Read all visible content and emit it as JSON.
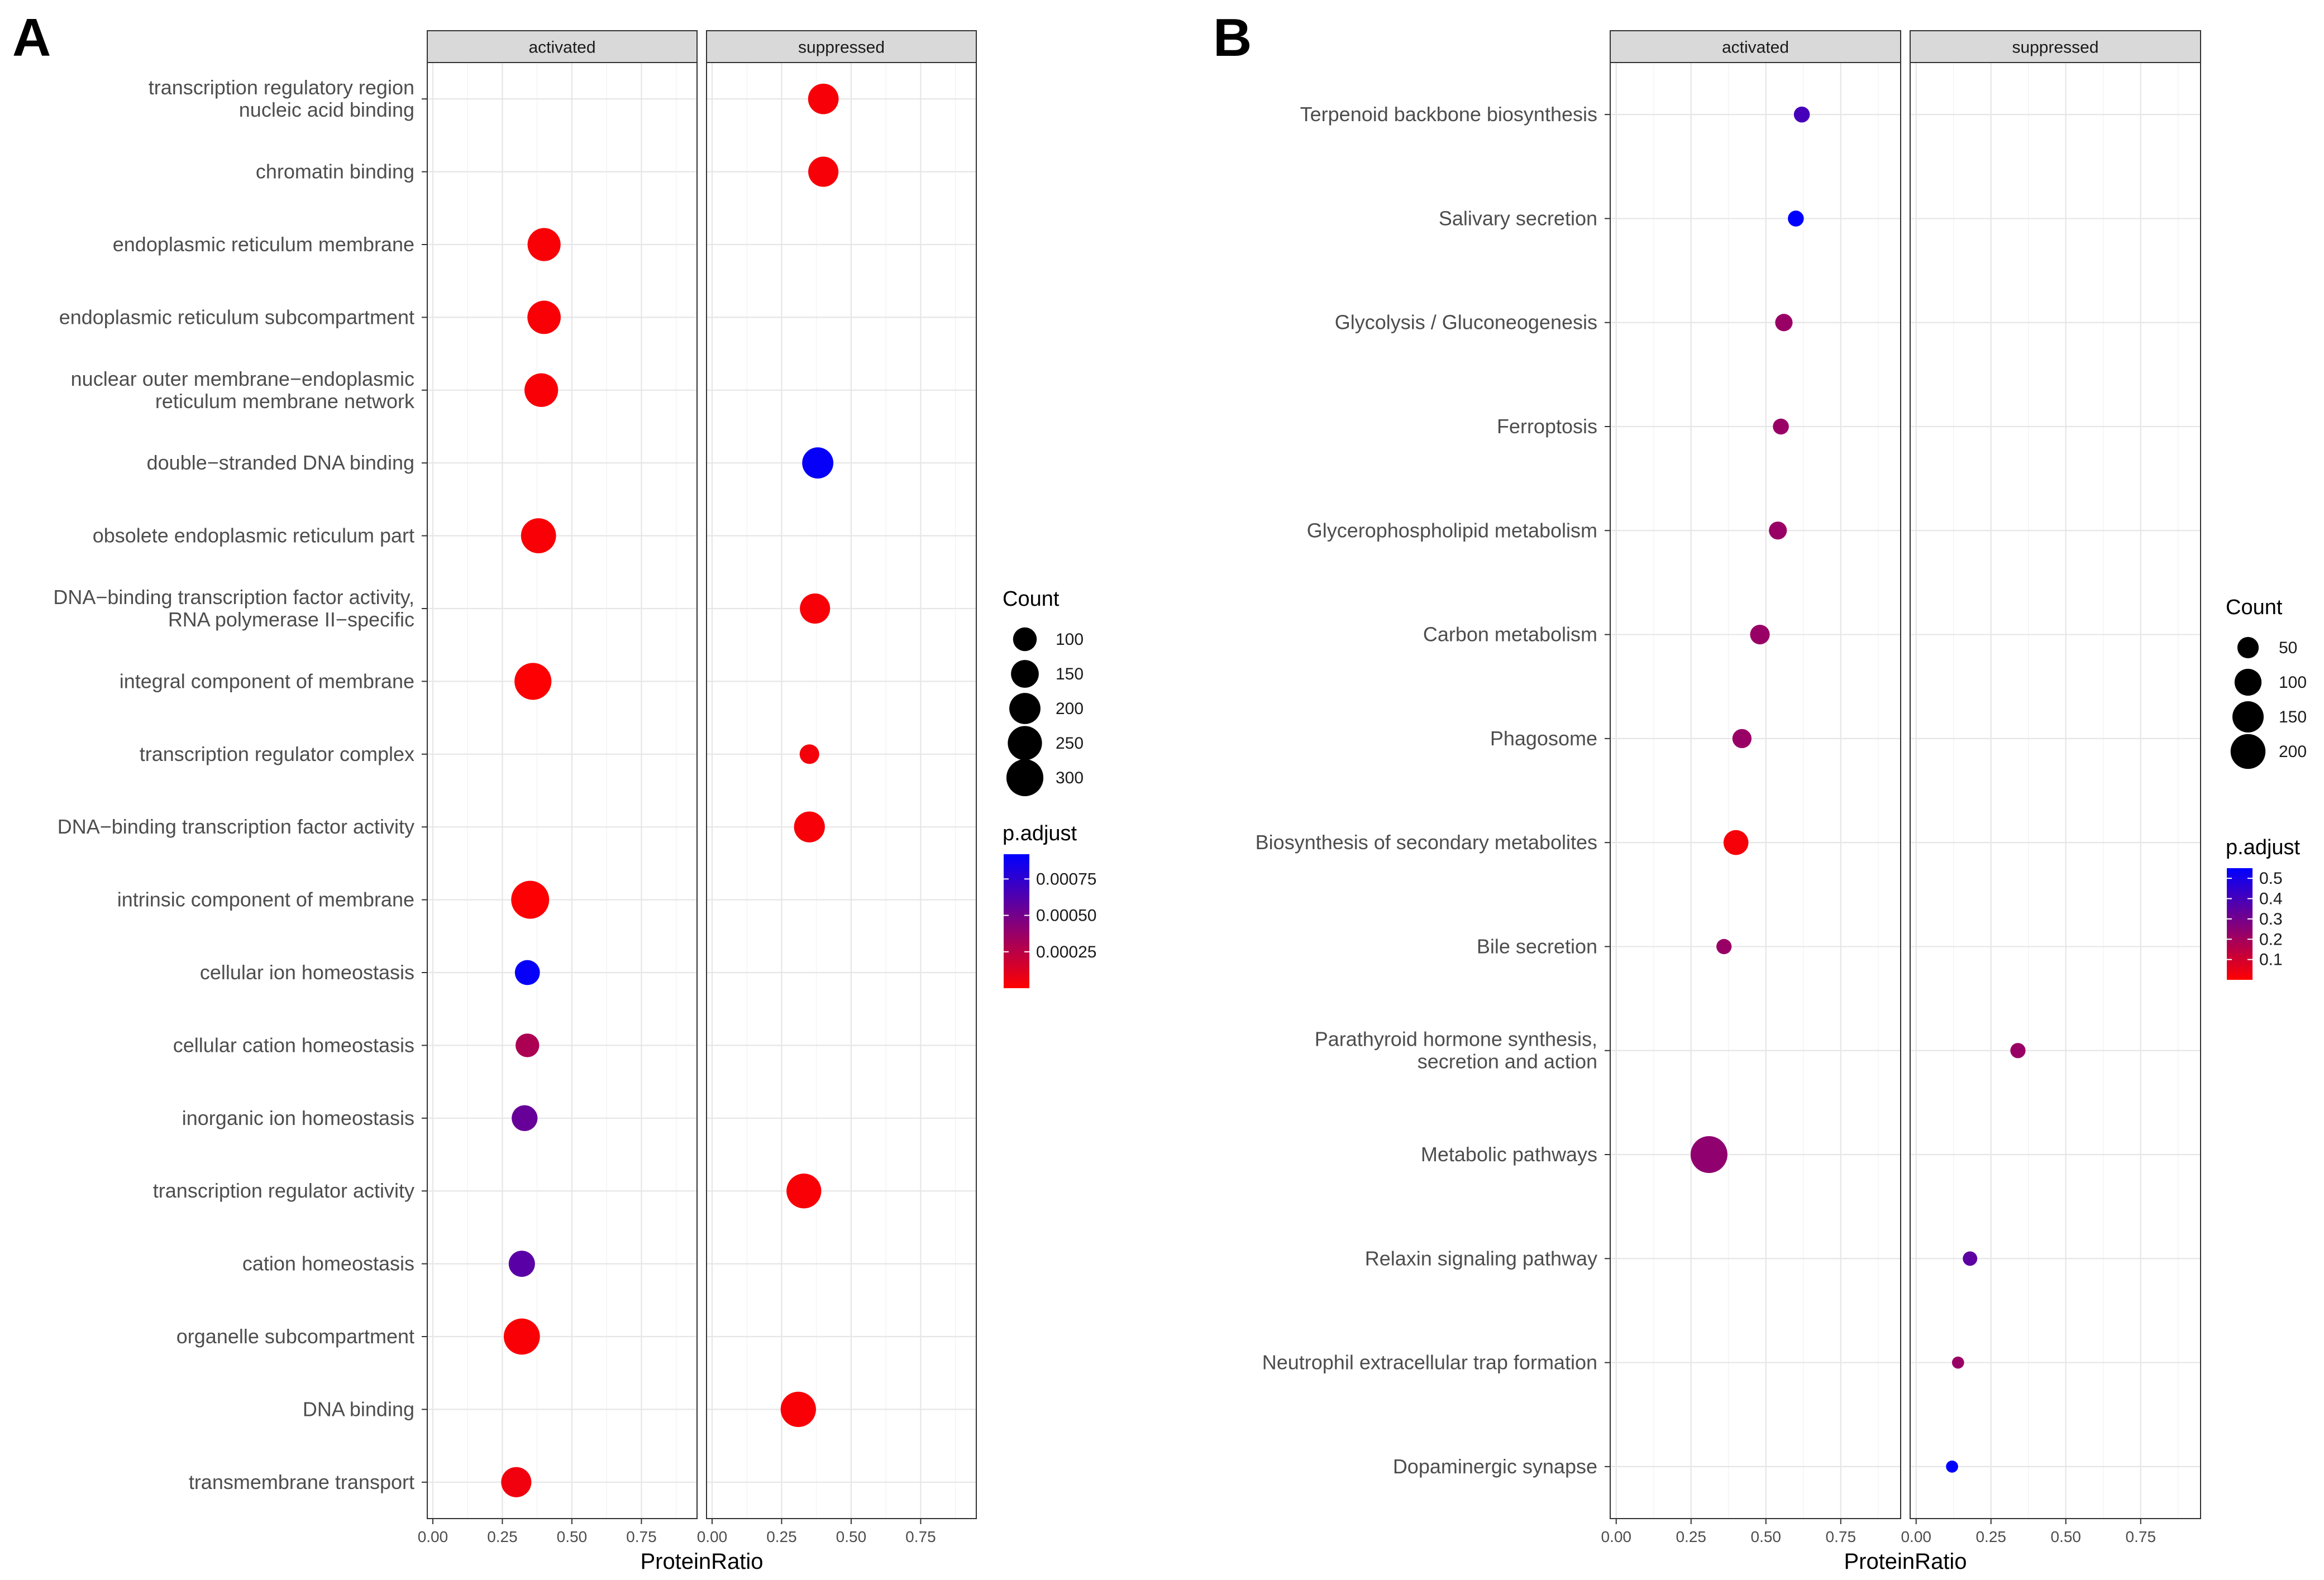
{
  "chart_data": [
    {
      "panel_label": "A",
      "type": "scatter",
      "facets": [
        "activated",
        "suppressed"
      ],
      "xlabel": "ProteinRatio",
      "xlim": [
        -0.02,
        0.95
      ],
      "xticks": [
        0,
        0.25,
        0.5,
        0.75
      ],
      "xtick_labels": [
        "0.00",
        "0.25",
        "0.50",
        "0.75"
      ],
      "categories": [
        "transcription regulatory region\nnucleic acid binding",
        "chromatin binding",
        "endoplasmic reticulum membrane",
        "endoplasmic reticulum subcompartment",
        "nuclear outer membrane−endoplasmic\nreticulum membrane network",
        "double−stranded DNA binding",
        "obsolete endoplasmic reticulum part",
        "DNA−binding transcription factor activity,\nRNA polymerase II−specific",
        "integral component of membrane",
        "transcription regulator complex",
        "DNA−binding transcription factor activity",
        "intrinsic component of membrane",
        "cellular ion homeostasis",
        "cellular cation homeostasis",
        "inorganic ion homeostasis",
        "transcription regulator activity",
        "cation homeostasis",
        "organelle subcompartment",
        "DNA binding",
        "transmembrane transport"
      ],
      "points": [
        {
          "facet": 1,
          "cat": 0,
          "x": 0.4,
          "count": 190,
          "padj": 3e-05
        },
        {
          "facet": 1,
          "cat": 1,
          "x": 0.4,
          "count": 185,
          "padj": 3e-05
        },
        {
          "facet": 0,
          "cat": 2,
          "x": 0.4,
          "count": 230,
          "padj": 2e-05
        },
        {
          "facet": 0,
          "cat": 3,
          "x": 0.4,
          "count": 235,
          "padj": 2e-05
        },
        {
          "facet": 0,
          "cat": 4,
          "x": 0.39,
          "count": 240,
          "padj": 2e-05
        },
        {
          "facet": 1,
          "cat": 5,
          "x": 0.38,
          "count": 200,
          "padj": 0.0009
        },
        {
          "facet": 0,
          "cat": 6,
          "x": 0.38,
          "count": 265,
          "padj": 2e-05
        },
        {
          "facet": 1,
          "cat": 7,
          "x": 0.37,
          "count": 185,
          "padj": 3e-05
        },
        {
          "facet": 0,
          "cat": 8,
          "x": 0.36,
          "count": 300,
          "padj": 1e-05
        },
        {
          "facet": 1,
          "cat": 9,
          "x": 0.35,
          "count": 60,
          "padj": 4e-05
        },
        {
          "facet": 1,
          "cat": 10,
          "x": 0.35,
          "count": 195,
          "padj": 3e-05
        },
        {
          "facet": 0,
          "cat": 11,
          "x": 0.35,
          "count": 320,
          "padj": 1e-05
        },
        {
          "facet": 0,
          "cat": 12,
          "x": 0.34,
          "count": 115,
          "padj": 0.0009
        },
        {
          "facet": 0,
          "cat": 13,
          "x": 0.34,
          "count": 100,
          "padj": 0.0003
        },
        {
          "facet": 0,
          "cat": 14,
          "x": 0.33,
          "count": 125,
          "padj": 0.00055
        },
        {
          "facet": 1,
          "cat": 15,
          "x": 0.33,
          "count": 260,
          "padj": 2e-05
        },
        {
          "facet": 0,
          "cat": 16,
          "x": 0.32,
          "count": 130,
          "padj": 0.0006
        },
        {
          "facet": 0,
          "cat": 17,
          "x": 0.32,
          "count": 285,
          "padj": 2e-05
        },
        {
          "facet": 1,
          "cat": 18,
          "x": 0.31,
          "count": 270,
          "padj": 2e-05
        },
        {
          "facet": 0,
          "cat": 19,
          "x": 0.3,
          "count": 185,
          "padj": 5e-05
        }
      ],
      "legend": {
        "size_title": "Count",
        "size_values": [
          100,
          150,
          200,
          250,
          300
        ],
        "color_title": "p.adjust",
        "color_min": 0.0,
        "color_max": 0.00092,
        "color_ticks": [
          0.00075,
          0.0005,
          0.00025
        ],
        "color_tick_labels": [
          "0.00075",
          "0.00050",
          "0.00025"
        ],
        "low_color": "#ff0000",
        "high_color": "#0000ff",
        "placement": "right"
      }
    },
    {
      "panel_label": "B",
      "type": "scatter",
      "facets": [
        "activated",
        "suppressed"
      ],
      "xlabel": "ProteinRatio",
      "xlim": [
        -0.02,
        0.95
      ],
      "xticks": [
        0,
        0.25,
        0.5,
        0.75
      ],
      "xtick_labels": [
        "0.00",
        "0.25",
        "0.50",
        "0.75"
      ],
      "categories": [
        "Terpenoid backbone biosynthesis",
        "Salivary secretion",
        "Glycolysis / Gluconeogenesis",
        "Ferroptosis",
        "Glycerophospholipid metabolism",
        "Carbon metabolism",
        "Phagosome",
        "Biosynthesis of secondary metabolites",
        "Bile secretion",
        "Parathyroid hormone synthesis,\nsecretion and action",
        "Metabolic pathways",
        "Relaxin signaling pathway",
        "Neutrophil extracellular trap formation",
        "Dopaminergic synapse"
      ],
      "points": [
        {
          "facet": 0,
          "cat": 0,
          "x": 0.62,
          "count": 18,
          "padj": 0.4
        },
        {
          "facet": 0,
          "cat": 1,
          "x": 0.6,
          "count": 18,
          "padj": 0.55
        },
        {
          "facet": 0,
          "cat": 2,
          "x": 0.56,
          "count": 25,
          "padj": 0.22
        },
        {
          "facet": 0,
          "cat": 3,
          "x": 0.55,
          "count": 18,
          "padj": 0.22
        },
        {
          "facet": 0,
          "cat": 4,
          "x": 0.54,
          "count": 28,
          "padj": 0.22
        },
        {
          "facet": 0,
          "cat": 5,
          "x": 0.48,
          "count": 38,
          "padj": 0.22
        },
        {
          "facet": 0,
          "cat": 6,
          "x": 0.42,
          "count": 35,
          "padj": 0.22
        },
        {
          "facet": 0,
          "cat": 7,
          "x": 0.4,
          "count": 80,
          "padj": 0.02
        },
        {
          "facet": 0,
          "cat": 8,
          "x": 0.36,
          "count": 15,
          "padj": 0.22
        },
        {
          "facet": 1,
          "cat": 9,
          "x": 0.34,
          "count": 15,
          "padj": 0.22
        },
        {
          "facet": 0,
          "cat": 10,
          "x": 0.31,
          "count": 230,
          "padj": 0.24
        },
        {
          "facet": 1,
          "cat": 11,
          "x": 0.18,
          "count": 12,
          "padj": 0.35
        },
        {
          "facet": 1,
          "cat": 12,
          "x": 0.14,
          "count": 5,
          "padj": 0.22
        },
        {
          "facet": 1,
          "cat": 13,
          "x": 0.12,
          "count": 5,
          "padj": 0.55
        }
      ],
      "legend": {
        "size_title": "Count",
        "size_values": [
          50,
          100,
          150,
          200
        ],
        "color_title": "p.adjust",
        "color_min": 0.0,
        "color_max": 0.55,
        "color_ticks": [
          0.5,
          0.4,
          0.3,
          0.2,
          0.1
        ],
        "color_tick_labels": [
          "0.5",
          "0.4",
          "0.3",
          "0.2",
          "0.1"
        ],
        "low_color": "#ff0000",
        "high_color": "#0000ff",
        "placement": "right"
      }
    }
  ]
}
